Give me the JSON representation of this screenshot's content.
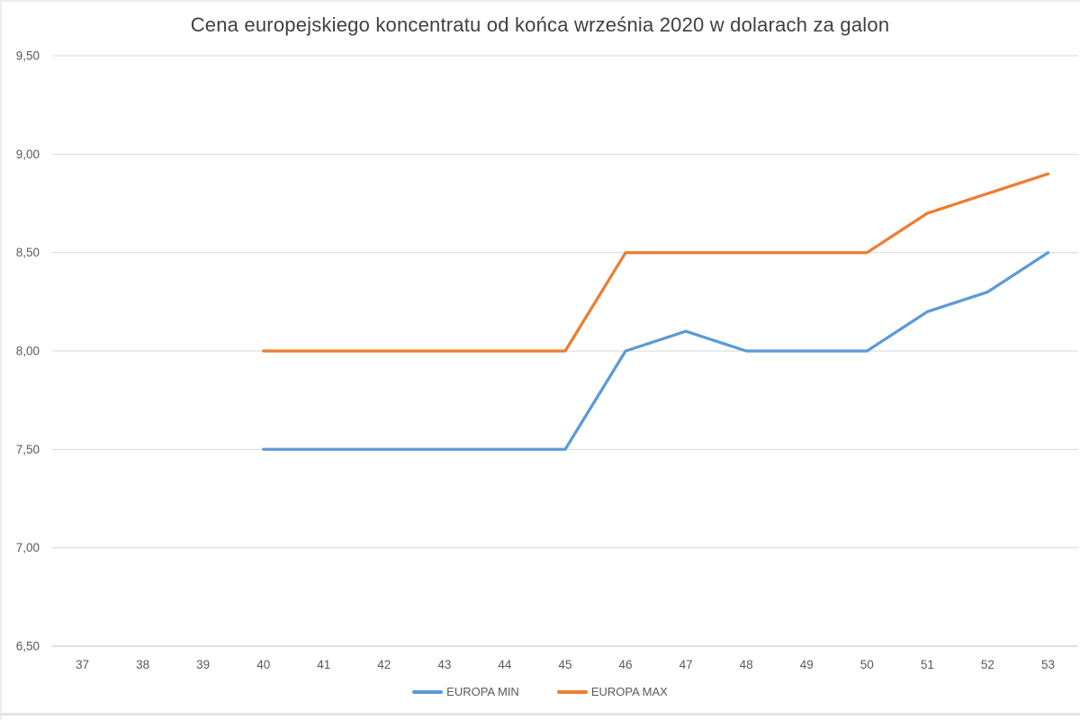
{
  "chart_data": {
    "type": "line",
    "title": "Cena europejskiego koncentratu od końca września 2020 w dolarach za galon",
    "categories": [
      "37",
      "38",
      "39",
      "40",
      "41",
      "42",
      "43",
      "44",
      "45",
      "46",
      "47",
      "48",
      "49",
      "50",
      "51",
      "52",
      "53"
    ],
    "series": [
      {
        "name": "EUROPA MIN",
        "color": "#5B9BD5",
        "values": [
          null,
          null,
          null,
          7.5,
          7.5,
          7.5,
          7.5,
          7.5,
          7.5,
          8.0,
          8.1,
          8.0,
          8.0,
          8.0,
          8.2,
          8.3,
          8.5
        ]
      },
      {
        "name": "EUROPA MAX",
        "color": "#ED7D31",
        "values": [
          null,
          null,
          null,
          8.0,
          8.0,
          8.0,
          8.0,
          8.0,
          8.0,
          8.5,
          8.5,
          8.5,
          8.5,
          8.5,
          8.7,
          8.8,
          8.9
        ]
      }
    ],
    "y_ticks": [
      {
        "value": 6.5,
        "label": "6,50"
      },
      {
        "value": 7.0,
        "label": "7,00"
      },
      {
        "value": 7.5,
        "label": "7,50"
      },
      {
        "value": 8.0,
        "label": "8,00"
      },
      {
        "value": 8.5,
        "label": "8,50"
      },
      {
        "value": 9.0,
        "label": "9,00"
      },
      {
        "value": 9.5,
        "label": "9,50"
      }
    ],
    "ylim": [
      6.5,
      9.5
    ],
    "xlabel": "",
    "ylabel": "",
    "grid": true,
    "legend_position": "bottom",
    "colors": {
      "gridline": "#D9D9D9",
      "axis_line": "#BFBFBF",
      "tick_text": "#595959",
      "title_text": "#404040"
    }
  }
}
